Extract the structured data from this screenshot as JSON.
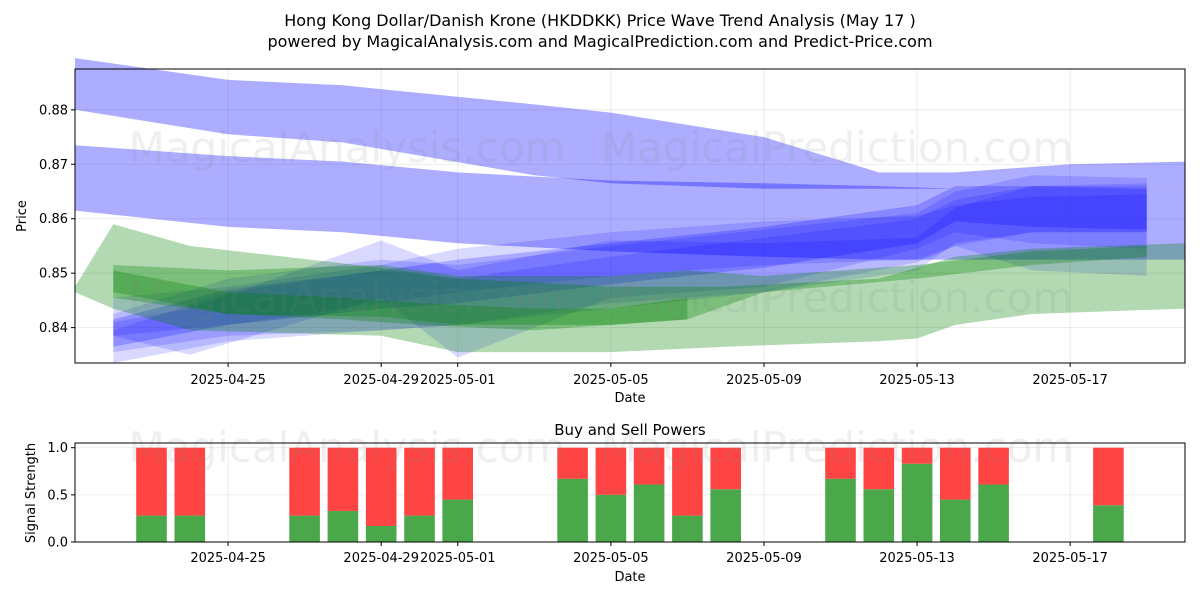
{
  "figure": {
    "title_line1": "Hong Kong Dollar/Danish Krone (HKDDKK) Price Wave Trend Analysis (May 17 )",
    "title_line2": "powered by MagicalAnalysis.com and MagicalPrediction.com and Predict-Price.com",
    "watermark_1": "MagicalAnalysis.com",
    "watermark_2": "MagicalPrediction.com"
  },
  "chart_data": [
    {
      "type": "area",
      "title": "",
      "xlabel": "Date",
      "ylabel": "Price",
      "x_ticks": [
        "2025-04-25",
        "2025-04-29",
        "2025-05-01",
        "2025-05-05",
        "2025-05-09",
        "2025-05-13",
        "2025-05-17"
      ],
      "y_ticks": [
        0.84,
        0.85,
        0.86,
        0.87,
        0.88
      ],
      "xlim": [
        "2025-04-21",
        "2025-05-20"
      ],
      "ylim": [
        0.8335,
        0.8875
      ],
      "grid": true,
      "colors": {
        "blue": "#0000ff",
        "green": "#008000"
      },
      "series": [
        {
          "color": "blue",
          "alpha": 0.32,
          "x": [
            "2025-04-21",
            "2025-04-25",
            "2025-04-28",
            "2025-05-03",
            "2025-05-05",
            "2025-05-09",
            "2025-05-12",
            "2025-05-14",
            "2025-05-17",
            "2025-05-20"
          ],
          "upper": [
            0.8895,
            0.8855,
            0.8845,
            0.881,
            0.8795,
            0.875,
            0.8685,
            0.8685,
            0.87,
            0.8705
          ],
          "lower": [
            0.88,
            0.8755,
            0.874,
            0.868,
            0.8665,
            0.8655,
            0.8655,
            0.8655,
            0.8655,
            0.8655
          ]
        },
        {
          "color": "blue",
          "alpha": 0.32,
          "x": [
            "2025-04-21",
            "2025-04-25",
            "2025-04-28",
            "2025-05-01",
            "2025-05-05",
            "2025-05-09",
            "2025-05-12",
            "2025-05-14",
            "2025-05-17",
            "2025-05-20"
          ],
          "upper": [
            0.8735,
            0.8715,
            0.8705,
            0.8685,
            0.867,
            0.8665,
            0.866,
            0.8655,
            0.8655,
            0.8655
          ],
          "lower": [
            0.8615,
            0.8585,
            0.8575,
            0.8555,
            0.854,
            0.853,
            0.8525,
            0.8525,
            0.8525,
            0.8525
          ]
        },
        {
          "color": "blue",
          "alpha": 0.15,
          "x": [
            "2025-04-22",
            "2025-04-25",
            "2025-04-29",
            "2025-05-01",
            "2025-05-05",
            "2025-05-09",
            "2025-05-13",
            "2025-05-14",
            "2025-05-16",
            "2025-05-19"
          ],
          "upper": [
            0.8425,
            0.849,
            0.8525,
            0.8515,
            0.855,
            0.858,
            0.861,
            0.865,
            0.868,
            0.8675
          ],
          "lower": [
            0.8355,
            0.8385,
            0.8395,
            0.8405,
            0.8445,
            0.8465,
            0.8505,
            0.8555,
            0.8575,
            0.8575
          ]
        },
        {
          "color": "blue",
          "alpha": 0.15,
          "x": [
            "2025-04-22",
            "2025-04-25",
            "2025-04-29",
            "2025-05-01",
            "2025-05-05",
            "2025-05-09",
            "2025-05-13",
            "2025-05-14",
            "2025-05-16",
            "2025-05-19"
          ],
          "upper": [
            0.8395,
            0.8465,
            0.8505,
            0.849,
            0.853,
            0.8565,
            0.86,
            0.8635,
            0.866,
            0.866
          ],
          "lower": [
            0.8335,
            0.8375,
            0.8395,
            0.8405,
            0.8435,
            0.8465,
            0.852,
            0.855,
            0.8575,
            0.8575
          ]
        },
        {
          "color": "blue",
          "alpha": 0.15,
          "x": [
            "2025-04-22",
            "2025-04-24",
            "2025-04-29",
            "2025-05-01",
            "2025-05-05",
            "2025-05-09",
            "2025-05-13",
            "2025-05-14",
            "2025-05-16",
            "2025-05-19"
          ],
          "upper": [
            0.841,
            0.8435,
            0.856,
            0.8505,
            0.856,
            0.8555,
            0.8565,
            0.862,
            0.866,
            0.8665
          ],
          "lower": [
            0.8385,
            0.835,
            0.8455,
            0.8345,
            0.8455,
            0.8475,
            0.8545,
            0.8575,
            0.8555,
            0.8545
          ]
        },
        {
          "color": "blue",
          "alpha": 0.22,
          "x": [
            "2025-04-22",
            "2025-04-25",
            "2025-04-29",
            "2025-05-01",
            "2025-05-05",
            "2025-05-09",
            "2025-05-13",
            "2025-05-14",
            "2025-05-16",
            "2025-05-19"
          ],
          "upper": [
            0.8415,
            0.847,
            0.8505,
            0.8525,
            0.8555,
            0.8585,
            0.8625,
            0.866,
            0.866,
            0.8655
          ],
          "lower": [
            0.8365,
            0.8405,
            0.8435,
            0.8445,
            0.848,
            0.851,
            0.8555,
            0.8595,
            0.8585,
            0.858
          ]
        },
        {
          "color": "blue",
          "alpha": 0.15,
          "x": [
            "2025-04-22",
            "2025-04-25",
            "2025-04-29",
            "2025-05-01",
            "2025-05-05",
            "2025-05-09",
            "2025-05-13",
            "2025-05-14",
            "2025-05-16",
            "2025-05-19"
          ],
          "upper": [
            0.8455,
            0.8475,
            0.8515,
            0.8545,
            0.8575,
            0.8595,
            0.8605,
            0.8625,
            0.864,
            0.8645
          ],
          "lower": [
            0.8385,
            0.8405,
            0.8445,
            0.8465,
            0.8495,
            0.8515,
            0.8525,
            0.855,
            0.8505,
            0.8495
          ]
        },
        {
          "color": "green",
          "alpha": 0.3,
          "x": [
            "2025-04-21",
            "2025-04-22",
            "2025-04-24",
            "2025-04-29",
            "2025-05-01",
            "2025-05-05",
            "2025-05-08",
            "2025-05-12",
            "2025-05-13",
            "2025-05-14",
            "2025-05-16",
            "2025-05-20"
          ],
          "upper": [
            0.8475,
            0.859,
            0.855,
            0.851,
            0.849,
            0.8475,
            0.8475,
            0.849,
            0.851,
            0.853,
            0.8545,
            0.8555
          ],
          "lower": [
            0.8465,
            0.8435,
            0.8395,
            0.8385,
            0.8355,
            0.8355,
            0.8365,
            0.8375,
            0.838,
            0.8405,
            0.8425,
            0.8435
          ]
        },
        {
          "color": "green",
          "alpha": 0.3,
          "x": [
            "2025-04-22",
            "2025-04-25",
            "2025-04-29",
            "2025-05-01",
            "2025-05-05",
            "2025-05-07",
            "2025-05-09",
            "2025-05-13",
            "2025-05-16",
            "2025-05-19"
          ],
          "upper": [
            0.8515,
            0.8505,
            0.8515,
            0.8495,
            0.8495,
            0.8505,
            0.8495,
            0.8515,
            0.854,
            0.855
          ],
          "lower": [
            0.8465,
            0.8425,
            0.842,
            0.8405,
            0.8405,
            0.8415,
            0.8465,
            0.849,
            0.8515,
            0.853
          ]
        },
        {
          "color": "green",
          "alpha": 0.3,
          "x": [
            "2025-04-22",
            "2025-04-25",
            "2025-04-28",
            "2025-04-30",
            "2025-05-03",
            "2025-05-05",
            "2025-05-07"
          ],
          "upper": [
            0.8505,
            0.8465,
            0.8455,
            0.8445,
            0.8435,
            0.8435,
            0.8455
          ],
          "lower": [
            0.8455,
            0.8425,
            0.8415,
            0.8405,
            0.8395,
            0.8405,
            0.8415
          ]
        }
      ]
    },
    {
      "type": "bar",
      "title": "Buy and Sell Powers",
      "xlabel": "Date",
      "ylabel": "Signal Strength",
      "x_ticks": [
        "2025-04-25",
        "2025-04-29",
        "2025-05-01",
        "2025-05-05",
        "2025-05-09",
        "2025-05-13",
        "2025-05-17"
      ],
      "y_ticks": [
        0.0,
        0.5,
        1.0
      ],
      "xlim": [
        "2025-04-21",
        "2025-05-20"
      ],
      "ylim": [
        0,
        1.05
      ],
      "grid": true,
      "colors": {
        "buy": "#4aa84a",
        "sell": "#ff4444"
      },
      "categories": [
        "2025-04-23",
        "2025-04-24",
        "2025-04-27",
        "2025-04-28",
        "2025-04-29",
        "2025-04-30",
        "2025-05-01",
        "2025-05-04",
        "2025-05-05",
        "2025-05-06",
        "2025-05-07",
        "2025-05-08",
        "2025-05-11",
        "2025-05-12",
        "2025-05-13",
        "2025-05-14",
        "2025-05-15",
        "2025-05-18"
      ],
      "series": [
        {
          "key": "buy",
          "values": [
            0.28,
            0.28,
            0.28,
            0.33,
            0.17,
            0.28,
            0.45,
            0.67,
            0.5,
            0.61,
            0.28,
            0.56,
            0.67,
            0.56,
            0.83,
            0.45,
            0.61,
            0.39
          ]
        },
        {
          "key": "sell",
          "values": [
            0.72,
            0.72,
            0.72,
            0.67,
            0.83,
            0.72,
            0.55,
            0.33,
            0.5,
            0.39,
            0.72,
            0.44,
            0.33,
            0.44,
            0.17,
            0.55,
            0.39,
            0.61
          ]
        }
      ]
    }
  ]
}
